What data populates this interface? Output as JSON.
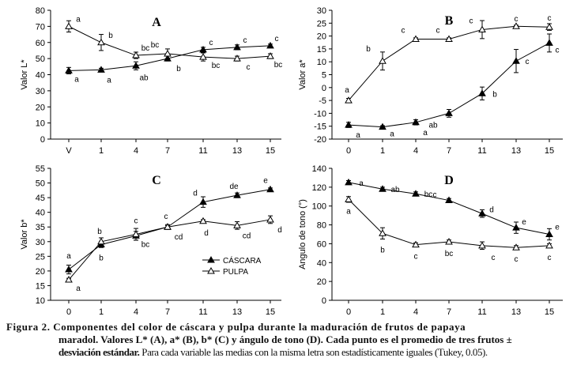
{
  "colors": {
    "axis": "#000000",
    "cascara": "#000000",
    "pulpa_fill": "#ffffff"
  },
  "chart_data": [
    {
      "type": "line",
      "panel": "A",
      "ylabel": "Valor L*",
      "x_ticks": [
        "V",
        "1",
        "4",
        "7",
        "11",
        "13",
        "15"
      ],
      "ylim": [
        0,
        80
      ],
      "y_ticks": [
        "0",
        "10",
        "20",
        "30",
        "40",
        "50",
        "60",
        "70",
        "80"
      ],
      "series": [
        {
          "name": "CÁSCARA",
          "values": [
            42.5,
            43,
            45.5,
            50,
            55.5,
            57,
            58
          ],
          "err": [
            2,
            1,
            2.5,
            1.5,
            1.5,
            1.5,
            1
          ],
          "letters": [
            "a",
            "a",
            "ab",
            "b",
            "c",
            "c",
            "c"
          ]
        },
        {
          "name": "PULPA",
          "values": [
            70,
            60,
            52,
            53,
            51,
            50,
            51.5
          ],
          "err": [
            3.5,
            5,
            2,
            3,
            2.5,
            1.5,
            1.5
          ],
          "letters": [
            "a",
            "b",
            "bc",
            "bc",
            "bc",
            "c",
            "bc"
          ]
        }
      ]
    },
    {
      "type": "line",
      "panel": "B",
      "ylabel": "Valor a*",
      "x_ticks": [
        "0",
        "1",
        "4",
        "7",
        "11",
        "13",
        "15"
      ],
      "ylim": [
        -20,
        30
      ],
      "y_ticks": [
        "-20",
        "-15",
        "-10",
        "-5",
        "0",
        "5",
        "10",
        "15",
        "20",
        "25",
        "30"
      ],
      "series": [
        {
          "name": "CÁSCARA",
          "values": [
            -14.5,
            -15.3,
            -13.5,
            -10,
            -2.3,
            10.3,
            17.3
          ],
          "err": [
            1,
            0.5,
            1,
            1.5,
            2.5,
            4.5,
            3.5
          ],
          "letters": [
            "a",
            "a",
            "a",
            "ab",
            "b",
            "c",
            "c"
          ]
        },
        {
          "name": "PULPA",
          "values": [
            -5,
            10.3,
            18.8,
            18.8,
            22.5,
            23.8,
            23.5
          ],
          "err": [
            0.8,
            3.5,
            0.5,
            0.5,
            3.5,
            0.4,
            1.3
          ],
          "letters": [
            "a",
            "b",
            "c",
            "c",
            "c",
            "c",
            "c"
          ]
        }
      ]
    },
    {
      "type": "line",
      "panel": "C",
      "ylabel": "Valor b*",
      "x_ticks": [
        "0",
        "1",
        "4",
        "7",
        "11",
        "13",
        "15"
      ],
      "ylim": [
        10,
        55
      ],
      "y_ticks": [
        "10",
        "15",
        "20",
        "25",
        "30",
        "35",
        "40",
        "45",
        "50",
        "55"
      ],
      "series": [
        {
          "name": "CÁSCARA",
          "values": [
            20.5,
            29,
            32,
            35,
            43.5,
            45.8,
            47.8
          ],
          "err": [
            1.5,
            1,
            1.5,
            0.5,
            1.8,
            0.8,
            0.5
          ],
          "letters": [
            "a",
            "b",
            "c",
            "c",
            "d",
            "de",
            "e"
          ]
        },
        {
          "name": "PULPA",
          "values": [
            17,
            30,
            32.5,
            35,
            37,
            35.5,
            37.5
          ],
          "err": [
            0.5,
            1.3,
            2,
            0.8,
            0.5,
            1.3,
            1.3
          ],
          "letters": [
            "a",
            "b",
            "bc",
            "cd",
            "d",
            "cd",
            "d"
          ]
        }
      ],
      "legend": {
        "position": "lower-right",
        "items": [
          "CÁSCARA",
          "PULPA"
        ]
      }
    },
    {
      "type": "line",
      "panel": "D",
      "ylabel": "Angulo de tono (°)",
      "x_ticks": [
        "0",
        "1",
        "4",
        "7",
        "11",
        "13",
        "15"
      ],
      "ylim": [
        0,
        140
      ],
      "y_ticks": [
        "0",
        "20",
        "40",
        "60",
        "80",
        "100",
        "120",
        "140"
      ],
      "series": [
        {
          "name": "CÁSCARA",
          "values": [
            125,
            118,
            113,
            106,
            92,
            77,
            70
          ],
          "err": [
            2,
            2,
            2,
            2,
            4,
            6,
            6
          ],
          "letters": [
            "a",
            "ab",
            "bc",
            "c",
            "d",
            "e",
            "e"
          ]
        },
        {
          "name": "PULPA",
          "values": [
            107,
            71,
            59,
            62,
            58,
            56,
            58
          ],
          "err": [
            3,
            6,
            2,
            2,
            4,
            2,
            2
          ],
          "letters": [
            "a",
            "b",
            "c",
            "bc",
            "c",
            "c",
            "c"
          ]
        }
      ]
    }
  ],
  "caption": {
    "line1": "Figura 2. Componentes del color de cáscara y pulpa durante la maduración de frutos de papaya",
    "line2": "maradol. Valores L* (A), a* (B), b* (C) y ángulo de tono (D). Cada punto es el promedio de tres frutos ±",
    "line3_bold": "desviación estándar.",
    "line3": " Para cada variable las medias con la misma letra son estadísticamente iguales (Tukey, 0.05)."
  }
}
